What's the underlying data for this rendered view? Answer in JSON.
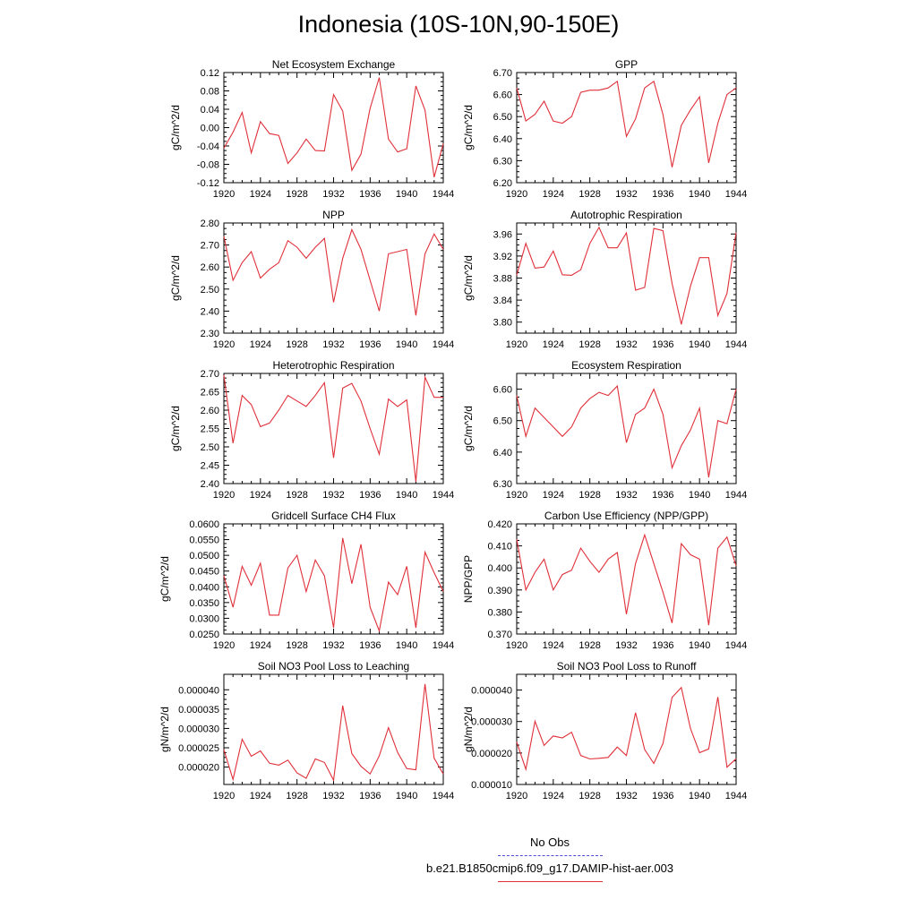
{
  "title": "Indonesia (10S-10N,90-150E)",
  "legend": {
    "obs_label": "No Obs",
    "obs_color": "#4b4bd6",
    "model_label": "b.e21.B1850cmip6.f09_g17.DAMIP-hist-aer.003",
    "model_color": "#e0303a"
  },
  "chart_data": [
    {
      "type": "line",
      "title": "Net Ecosystem Exchange",
      "ylabel": "gC/m^2/d",
      "xlim": [
        1920,
        1944
      ],
      "ylim": [
        -0.12,
        0.12
      ],
      "xticks": [
        1920,
        1924,
        1928,
        1932,
        1936,
        1940,
        1944
      ],
      "yticks": [
        "-0.12",
        "-0.08",
        "-0.04",
        "0.00",
        "0.04",
        "0.08",
        "0.12"
      ],
      "x": [
        1920,
        1921,
        1922,
        1923,
        1924,
        1925,
        1926,
        1927,
        1928,
        1929,
        1930,
        1931,
        1932,
        1933,
        1934,
        1935,
        1936,
        1937,
        1938,
        1939,
        1940,
        1941,
        1942,
        1943,
        1944
      ],
      "values": [
        -0.045,
        -0.01,
        0.033,
        -0.055,
        0.013,
        -0.013,
        -0.017,
        -0.078,
        -0.055,
        -0.025,
        -0.05,
        -0.051,
        0.072,
        0.036,
        -0.093,
        -0.058,
        0.042,
        0.109,
        -0.025,
        -0.053,
        -0.046,
        0.091,
        0.038,
        -0.108,
        -0.035
      ]
    },
    {
      "type": "line",
      "title": "GPP",
      "ylabel": "gC/m^2/d",
      "xlim": [
        1920,
        1944
      ],
      "ylim": [
        6.2,
        6.7
      ],
      "xticks": [
        1920,
        1924,
        1928,
        1932,
        1936,
        1940,
        1944
      ],
      "yticks": [
        "6.20",
        "6.30",
        "6.40",
        "6.50",
        "6.60",
        "6.70"
      ],
      "x": [
        1920,
        1921,
        1922,
        1923,
        1924,
        1925,
        1926,
        1927,
        1928,
        1929,
        1930,
        1931,
        1932,
        1933,
        1934,
        1935,
        1936,
        1937,
        1938,
        1939,
        1940,
        1941,
        1942,
        1943,
        1944
      ],
      "values": [
        6.63,
        6.48,
        6.51,
        6.57,
        6.48,
        6.47,
        6.5,
        6.61,
        6.62,
        6.62,
        6.63,
        6.66,
        6.41,
        6.49,
        6.63,
        6.66,
        6.51,
        6.27,
        6.46,
        6.53,
        6.59,
        6.29,
        6.47,
        6.6,
        6.63
      ]
    },
    {
      "type": "line",
      "title": "NPP",
      "ylabel": "gC/m^2/d",
      "xlim": [
        1920,
        1944
      ],
      "ylim": [
        2.3,
        2.8
      ],
      "xticks": [
        1920,
        1924,
        1928,
        1932,
        1936,
        1940,
        1944
      ],
      "yticks": [
        "2.30",
        "2.40",
        "2.50",
        "2.60",
        "2.70",
        "2.80"
      ],
      "x": [
        1920,
        1921,
        1922,
        1923,
        1924,
        1925,
        1926,
        1927,
        1928,
        1929,
        1930,
        1931,
        1932,
        1933,
        1934,
        1935,
        1936,
        1937,
        1938,
        1939,
        1940,
        1941,
        1942,
        1943,
        1944
      ],
      "values": [
        2.74,
        2.54,
        2.62,
        2.67,
        2.55,
        2.59,
        2.62,
        2.72,
        2.69,
        2.64,
        2.69,
        2.73,
        2.44,
        2.64,
        2.77,
        2.68,
        2.54,
        2.4,
        2.66,
        2.67,
        2.68,
        2.38,
        2.66,
        2.75,
        2.68
      ]
    },
    {
      "type": "line",
      "title": "Autotrophic Respiration",
      "ylabel": "gC/m^2/d",
      "xlim": [
        1920,
        1944
      ],
      "ylim": [
        3.78,
        3.98
      ],
      "xticks": [
        1920,
        1924,
        1928,
        1932,
        1936,
        1940,
        1944
      ],
      "yticks": [
        "3.80",
        "3.84",
        "3.88",
        "3.92",
        "3.96"
      ],
      "x": [
        1920,
        1921,
        1922,
        1923,
        1924,
        1925,
        1926,
        1927,
        1928,
        1929,
        1930,
        1931,
        1932,
        1933,
        1934,
        1935,
        1936,
        1937,
        1938,
        1939,
        1940,
        1941,
        1942,
        1943,
        1944
      ],
      "values": [
        3.885,
        3.943,
        3.898,
        3.9,
        3.929,
        3.886,
        3.885,
        3.895,
        3.943,
        3.972,
        3.935,
        3.935,
        3.962,
        3.858,
        3.863,
        3.97,
        3.966,
        3.87,
        3.796,
        3.865,
        3.917,
        3.917,
        3.812,
        3.852,
        3.963
      ]
    },
    {
      "type": "line",
      "title": "Heterotrophic Respiration",
      "ylabel": "gC/m^2/d",
      "xlim": [
        1920,
        1944
      ],
      "ylim": [
        2.4,
        2.7
      ],
      "xticks": [
        1920,
        1924,
        1928,
        1932,
        1936,
        1940,
        1944
      ],
      "yticks": [
        "2.40",
        "2.45",
        "2.50",
        "2.55",
        "2.60",
        "2.65",
        "2.70"
      ],
      "x": [
        1920,
        1921,
        1922,
        1923,
        1924,
        1925,
        1926,
        1927,
        1928,
        1929,
        1930,
        1931,
        1932,
        1933,
        1934,
        1935,
        1936,
        1937,
        1938,
        1939,
        1940,
        1941,
        1942,
        1943,
        1944
      ],
      "values": [
        2.695,
        2.51,
        2.64,
        2.615,
        2.555,
        2.565,
        2.6,
        2.64,
        2.625,
        2.61,
        2.64,
        2.675,
        2.47,
        2.66,
        2.673,
        2.625,
        2.55,
        2.48,
        2.63,
        2.61,
        2.628,
        2.405,
        2.69,
        2.635,
        2.635
      ]
    },
    {
      "type": "line",
      "title": "Ecosystem Respiration",
      "ylabel": "gC/m^2/d",
      "xlim": [
        1920,
        1944
      ],
      "ylim": [
        6.3,
        6.65
      ],
      "xticks": [
        1920,
        1924,
        1928,
        1932,
        1936,
        1940,
        1944
      ],
      "yticks": [
        "6.30",
        "6.40",
        "6.50",
        "6.60"
      ],
      "x": [
        1920,
        1921,
        1922,
        1923,
        1924,
        1925,
        1926,
        1927,
        1928,
        1929,
        1930,
        1931,
        1932,
        1933,
        1934,
        1935,
        1936,
        1937,
        1938,
        1939,
        1940,
        1941,
        1942,
        1943,
        1944
      ],
      "values": [
        6.58,
        6.45,
        6.54,
        6.51,
        6.48,
        6.45,
        6.48,
        6.54,
        6.57,
        6.59,
        6.58,
        6.61,
        6.43,
        6.52,
        6.54,
        6.6,
        6.52,
        6.35,
        6.42,
        6.47,
        6.54,
        6.32,
        6.5,
        6.49,
        6.6
      ]
    },
    {
      "type": "line",
      "title": "Gridcell Surface CH4 Flux",
      "ylabel": "gC/m^2/d",
      "xlim": [
        1920,
        1944
      ],
      "ylim": [
        0.025,
        0.06
      ],
      "xticks": [
        1920,
        1924,
        1928,
        1932,
        1936,
        1940,
        1944
      ],
      "yticks": [
        "0.0250",
        "0.0300",
        "0.0350",
        "0.0400",
        "0.0450",
        "0.0500",
        "0.0550",
        "0.0600"
      ],
      "x": [
        1920,
        1921,
        1922,
        1923,
        1924,
        1925,
        1926,
        1927,
        1928,
        1929,
        1930,
        1931,
        1932,
        1933,
        1934,
        1935,
        1936,
        1937,
        1938,
        1939,
        1940,
        1941,
        1942,
        1943,
        1944
      ],
      "values": [
        0.0435,
        0.0335,
        0.0465,
        0.0405,
        0.0475,
        0.031,
        0.031,
        0.046,
        0.05,
        0.0385,
        0.0485,
        0.0435,
        0.027,
        0.0555,
        0.041,
        0.0535,
        0.0335,
        0.026,
        0.0415,
        0.0375,
        0.0465,
        0.027,
        0.051,
        0.0445,
        0.0385
      ]
    },
    {
      "type": "line",
      "title": "Carbon Use Efficiency (NPP/GPP)",
      "ylabel": "NPP/GPP",
      "xlim": [
        1920,
        1944
      ],
      "ylim": [
        0.37,
        0.42
      ],
      "xticks": [
        1920,
        1924,
        1928,
        1932,
        1936,
        1940,
        1944
      ],
      "yticks": [
        "0.370",
        "0.380",
        "0.390",
        "0.400",
        "0.410",
        "0.420"
      ],
      "x": [
        1920,
        1921,
        1922,
        1923,
        1924,
        1925,
        1926,
        1927,
        1928,
        1929,
        1930,
        1931,
        1932,
        1933,
        1934,
        1935,
        1936,
        1937,
        1938,
        1939,
        1940,
        1941,
        1942,
        1943,
        1944
      ],
      "values": [
        0.413,
        0.39,
        0.398,
        0.404,
        0.39,
        0.397,
        0.399,
        0.409,
        0.403,
        0.398,
        0.404,
        0.407,
        0.379,
        0.402,
        0.415,
        0.402,
        0.389,
        0.375,
        0.411,
        0.406,
        0.404,
        0.374,
        0.409,
        0.414,
        0.401
      ]
    },
    {
      "type": "line",
      "title": "Soil NO3 Pool Loss to Leaching",
      "ylabel": "gN/m^2/d",
      "xlim": [
        1920,
        1944
      ],
      "ylim": [
        1.55e-05,
        4.4e-05
      ],
      "xticks": [
        1920,
        1924,
        1928,
        1932,
        1936,
        1940,
        1944
      ],
      "yticks": [
        "0.000020",
        "0.000025",
        "0.000030",
        "0.000035",
        "0.000040"
      ],
      "ytick_values": [
        2e-05,
        2.5e-05,
        3e-05,
        3.5e-05,
        4e-05
      ],
      "x": [
        1920,
        1921,
        1922,
        1923,
        1924,
        1925,
        1926,
        1927,
        1928,
        1929,
        1930,
        1931,
        1932,
        1933,
        1934,
        1935,
        1936,
        1937,
        1938,
        1939,
        1940,
        1941,
        1942,
        1943,
        1944
      ],
      "values": [
        2.45e-05,
        1.68e-05,
        2.72e-05,
        2.28e-05,
        2.42e-05,
        2.1e-05,
        2.05e-05,
        2.18e-05,
        1.85e-05,
        1.71e-05,
        2.21e-05,
        2.12e-05,
        1.66e-05,
        3.59e-05,
        2.35e-05,
        2.02e-05,
        1.82e-05,
        2.29e-05,
        3.02e-05,
        2.38e-05,
        1.96e-05,
        1.93e-05,
        4.15e-05,
        2.23e-05,
        1.82e-05
      ]
    },
    {
      "type": "line",
      "title": "Soil NO3 Pool Loss to Runoff",
      "ylabel": "gN/m^2/d",
      "xlim": [
        1920,
        1944
      ],
      "ylim": [
        1e-05,
        4.5e-05
      ],
      "xticks": [
        1920,
        1924,
        1928,
        1932,
        1936,
        1940,
        1944
      ],
      "yticks": [
        "0.000010",
        "0.000020",
        "0.000030",
        "0.000040"
      ],
      "ytick_values": [
        1e-05,
        2e-05,
        3e-05,
        4e-05
      ],
      "x": [
        1920,
        1921,
        1922,
        1923,
        1924,
        1925,
        1926,
        1927,
        1928,
        1929,
        1930,
        1931,
        1932,
        1933,
        1934,
        1935,
        1936,
        1937,
        1938,
        1939,
        1940,
        1941,
        1942,
        1943,
        1944
      ],
      "values": [
        2.35e-05,
        1.48e-05,
        3.01e-05,
        2.24e-05,
        2.54e-05,
        2.48e-05,
        2.66e-05,
        1.92e-05,
        1.81e-05,
        1.83e-05,
        1.86e-05,
        2.19e-05,
        1.92e-05,
        3.28e-05,
        2.11e-05,
        1.67e-05,
        2.3e-05,
        3.77e-05,
        4.08e-05,
        2.78e-05,
        2.01e-05,
        2.13e-05,
        3.78e-05,
        1.55e-05,
        1.82e-05
      ]
    }
  ]
}
